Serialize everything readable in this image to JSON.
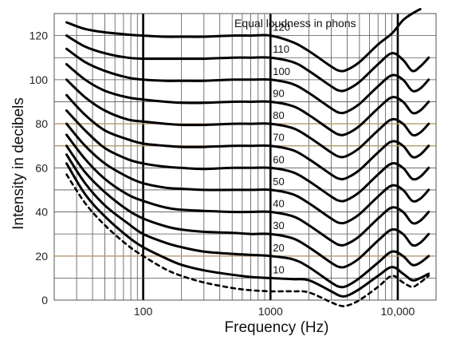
{
  "chart_data": {
    "type": "line",
    "title": "",
    "xlabel": "Frequency (Hz)",
    "ylabel": "Intensity in decibels",
    "legend_title": "Equal loudness in phons",
    "xscale": "log",
    "xlim": [
      20,
      20000
    ],
    "ylim": [
      0,
      130
    ],
    "x_ticks": [
      {
        "value": 100,
        "label": "100",
        "color": "#111111"
      },
      {
        "value": 1000,
        "label": "1000",
        "color": "#d1203a"
      },
      {
        "value": 10000,
        "label": "10,000",
        "color": "#111111"
      }
    ],
    "y_ticks": [
      {
        "value": 0,
        "label": "0"
      },
      {
        "value": 20,
        "label": "20"
      },
      {
        "value": 40,
        "label": "40"
      },
      {
        "value": 60,
        "label": "60"
      },
      {
        "value": 80,
        "label": "80"
      },
      {
        "value": 100,
        "label": "100"
      },
      {
        "value": 120,
        "label": "120"
      }
    ],
    "highlight_y": [
      20,
      70,
      80
    ],
    "x_emphasis": [
      100,
      1000,
      10000
    ],
    "grid": true,
    "colors": {
      "curve": "#000000",
      "grid": "#555555",
      "highlight_grid": "#b39a6b",
      "accent_1000": "#d1203a"
    },
    "series": [
      {
        "name": "120",
        "x": [
          25,
          35,
          50,
          75,
          100,
          150,
          200,
          300,
          500,
          700,
          1000,
          1500,
          2000,
          3000,
          3500,
          4000,
          5000,
          7000,
          9000,
          11000,
          13000,
          15000
        ],
        "y": [
          126,
          123,
          121.5,
          120.5,
          120,
          119.5,
          119.5,
          119.5,
          120,
          120,
          120,
          117,
          113,
          106,
          104,
          104.5,
          108,
          116,
          121,
          127,
          130,
          132
        ]
      },
      {
        "name": "110",
        "x": [
          25,
          35,
          50,
          75,
          100,
          150,
          200,
          300,
          500,
          700,
          1000,
          1500,
          2000,
          3000,
          3500,
          4000,
          5000,
          7000,
          9000,
          11000,
          13000,
          15000,
          17500
        ],
        "y": [
          120,
          115,
          112,
          110,
          109.5,
          109.5,
          109.5,
          109.5,
          110,
          110,
          110,
          108,
          104,
          97,
          95,
          95.5,
          99,
          107,
          112,
          109,
          104,
          106,
          110
        ]
      },
      {
        "name": "100",
        "x": [
          25,
          35,
          50,
          75,
          100,
          150,
          200,
          300,
          500,
          700,
          1000,
          1500,
          2000,
          3000,
          3500,
          4000,
          5000,
          7000,
          9000,
          11000,
          13000,
          15000,
          17500
        ],
        "y": [
          114,
          108,
          104,
          101,
          100,
          99.5,
          99.5,
          99.5,
          100,
          100,
          100,
          98,
          94,
          87,
          85,
          85.5,
          89,
          97,
          102,
          100,
          95,
          96,
          100
        ]
      },
      {
        "name": "90",
        "x": [
          25,
          35,
          50,
          75,
          100,
          150,
          200,
          300,
          500,
          700,
          1000,
          1500,
          2000,
          3000,
          3500,
          4000,
          5000,
          7000,
          9000,
          11000,
          13000,
          15000,
          17500
        ],
        "y": [
          107,
          100,
          95,
          92,
          91,
          90,
          89.5,
          89.5,
          90,
          90,
          90,
          88,
          84,
          77,
          75,
          75.5,
          79,
          87,
          92,
          90,
          85,
          86,
          90
        ]
      },
      {
        "name": "80",
        "x": [
          25,
          35,
          50,
          75,
          100,
          150,
          200,
          300,
          500,
          700,
          1000,
          1500,
          2000,
          3000,
          3500,
          4000,
          5000,
          7000,
          9000,
          11000,
          13000,
          15000,
          17500
        ],
        "y": [
          100,
          92,
          86,
          82,
          81,
          80,
          79.5,
          79.5,
          80,
          80,
          80,
          78,
          74,
          67,
          65,
          65.5,
          69,
          77,
          82,
          80,
          75,
          76,
          80
        ]
      },
      {
        "name": "70",
        "x": [
          25,
          35,
          50,
          75,
          100,
          150,
          200,
          300,
          500,
          700,
          1000,
          1500,
          2000,
          3000,
          3500,
          4000,
          5000,
          7000,
          9000,
          11000,
          13000,
          15000,
          17500
        ],
        "y": [
          93,
          84,
          77,
          73,
          71,
          70,
          69.5,
          69.5,
          70,
          70,
          70,
          68,
          64,
          57,
          55,
          55.5,
          59,
          67,
          72,
          70,
          65,
          66,
          70
        ]
      },
      {
        "name": "60",
        "x": [
          25,
          35,
          50,
          75,
          100,
          150,
          200,
          300,
          500,
          700,
          1000,
          1500,
          2000,
          3000,
          3500,
          4000,
          5000,
          7000,
          9000,
          11000,
          13000,
          15000,
          17500
        ],
        "y": [
          86,
          77,
          69,
          64,
          62,
          60.5,
          60,
          59.5,
          60,
          60,
          60,
          58,
          54,
          47,
          45,
          45.5,
          49,
          57,
          62,
          60,
          55,
          56,
          60
        ]
      },
      {
        "name": "50",
        "x": [
          25,
          35,
          50,
          75,
          100,
          150,
          200,
          300,
          500,
          700,
          1000,
          1500,
          2000,
          3000,
          3500,
          4000,
          5000,
          7000,
          9000,
          11000,
          13000,
          15000,
          17500
        ],
        "y": [
          80,
          70,
          62,
          56,
          53,
          51,
          50.5,
          50,
          50,
          50,
          50,
          48,
          44,
          37,
          35,
          35.5,
          39,
          47,
          52,
          50,
          45,
          46,
          50
        ]
      },
      {
        "name": "40",
        "x": [
          25,
          35,
          50,
          75,
          100,
          150,
          200,
          300,
          500,
          700,
          1000,
          1500,
          2000,
          3000,
          3500,
          4000,
          5000,
          7000,
          9000,
          11000,
          13000,
          15000,
          17500
        ],
        "y": [
          75,
          64,
          55,
          48,
          45,
          42,
          41,
          40.5,
          40,
          40,
          40,
          38,
          34,
          27,
          25,
          25.5,
          29,
          37,
          42,
          40,
          35,
          36,
          40
        ]
      },
      {
        "name": "30",
        "x": [
          25,
          35,
          50,
          75,
          100,
          150,
          200,
          300,
          500,
          700,
          1000,
          1500,
          2000,
          3000,
          3500,
          4000,
          5000,
          7000,
          9000,
          11000,
          13000,
          15000,
          17500
        ],
        "y": [
          70,
          58,
          49,
          41,
          37,
          33.5,
          32,
          31,
          30.5,
          30,
          30,
          28,
          24,
          17,
          15,
          15.5,
          19,
          27,
          32,
          30,
          25,
          26,
          30
        ]
      },
      {
        "name": "20",
        "x": [
          25,
          35,
          50,
          75,
          100,
          150,
          200,
          300,
          500,
          700,
          1000,
          1500,
          2000,
          3000,
          3500,
          4000,
          5000,
          7000,
          9000,
          11000,
          13000,
          15000,
          17500
        ],
        "y": [
          66,
          53,
          43,
          35,
          30,
          26,
          24,
          22,
          21,
          20.5,
          20,
          18.5,
          15,
          8,
          6,
          6.5,
          10,
          17,
          22,
          20,
          16,
          17,
          20
        ]
      },
      {
        "name": "10",
        "x": [
          25,
          35,
          50,
          75,
          100,
          150,
          200,
          300,
          500,
          700,
          1000,
          1500,
          2000,
          3000,
          3500,
          4000,
          5000,
          7000,
          9000,
          11000,
          13000,
          15000,
          17500
        ],
        "y": [
          62,
          48,
          38,
          29,
          24,
          19,
          16,
          13.5,
          11.5,
          10.5,
          10,
          9.5,
          9,
          4,
          2,
          2,
          5,
          11,
          15,
          12,
          9,
          10,
          12
        ]
      },
      {
        "name": "",
        "dashed": true,
        "x": [
          25,
          35,
          50,
          75,
          100,
          150,
          200,
          300,
          500,
          700,
          1000,
          1500,
          2000,
          3000,
          3500,
          4000,
          5000,
          7000,
          9000,
          11000,
          13000,
          15000,
          17500
        ],
        "y": [
          57,
          44,
          34,
          25,
          20,
          14,
          11,
          8,
          5.5,
          4.5,
          4,
          4,
          3.5,
          -1,
          -2.5,
          -2.5,
          0,
          6,
          11,
          8,
          6,
          8,
          11
        ]
      }
    ]
  }
}
